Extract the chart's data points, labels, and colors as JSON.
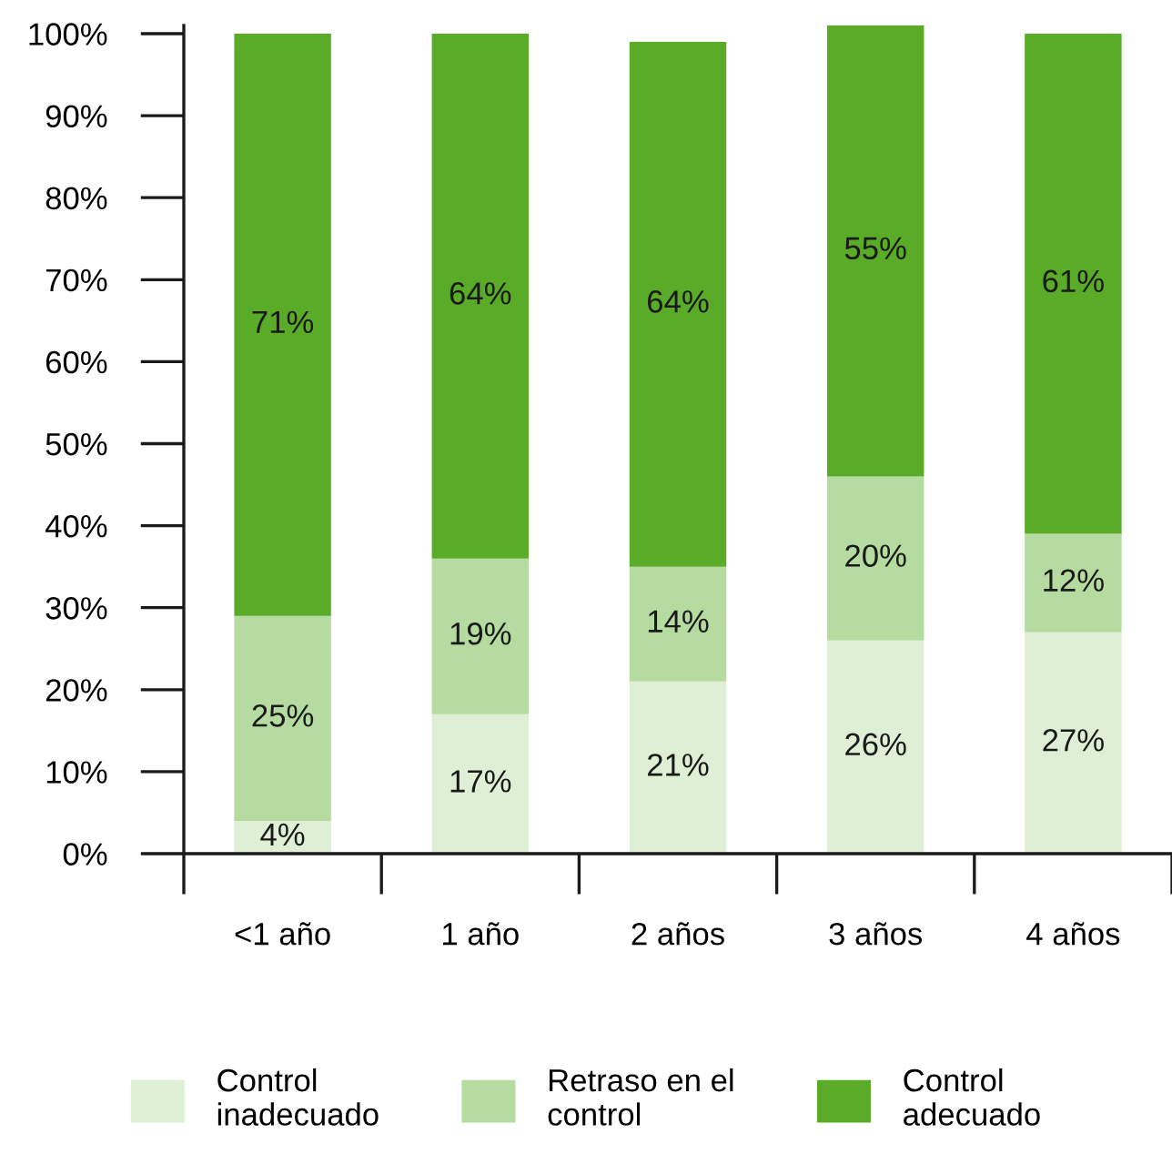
{
  "chart_data": {
    "type": "bar",
    "stacked": true,
    "categories": [
      "<1 año",
      "1 año",
      "2 años",
      "3 años",
      "4 años"
    ],
    "series": [
      {
        "name": "Control\ninadecuado",
        "color": "#deefd6",
        "values": [
          4,
          17,
          21,
          26,
          27
        ],
        "value_labels": [
          "4%",
          "17%",
          "21%",
          "26%",
          "27%"
        ]
      },
      {
        "name": "Retraso en el\ncontrol",
        "color": "#b6dba0",
        "values": [
          25,
          19,
          14,
          20,
          12
        ],
        "value_labels": [
          "25%",
          "19%",
          "14%",
          "20%",
          "12%"
        ]
      },
      {
        "name": "Control\nadecuado",
        "color": "#5aab27",
        "values": [
          71,
          64,
          64,
          55,
          61
        ],
        "value_labels": [
          "71%",
          "64%",
          "64%",
          "55%",
          "61%"
        ]
      }
    ],
    "ylim": [
      0,
      101
    ],
    "yticks": [
      {
        "value": 0,
        "label": "0%"
      },
      {
        "value": 10,
        "label": "10%"
      },
      {
        "value": 20,
        "label": "20%"
      },
      {
        "value": 30,
        "label": "30%"
      },
      {
        "value": 40,
        "label": "40%"
      },
      {
        "value": 50,
        "label": "50%"
      },
      {
        "value": 60,
        "label": "60%"
      },
      {
        "value": 70,
        "label": "70%"
      },
      {
        "value": 80,
        "label": "80%"
      },
      {
        "value": 90,
        "label": "90%"
      },
      {
        "value": 100,
        "label": "100%"
      }
    ],
    "grid": false,
    "legend": "bottom"
  }
}
